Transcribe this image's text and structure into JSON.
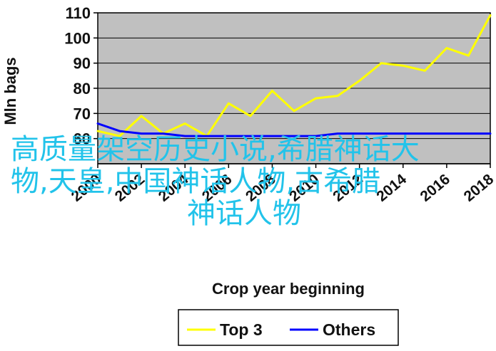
{
  "chart_data": {
    "type": "line",
    "xlabel": "Crop year beginning",
    "ylabel": "Mln bags",
    "ylim": [
      50,
      110
    ],
    "yticks": [
      60,
      70,
      80,
      90,
      100,
      110
    ],
    "xlim": [
      2000,
      2018
    ],
    "xticks": [
      2000,
      2002,
      2004,
      2006,
      2008,
      2010,
      2012,
      2014,
      2016,
      2018
    ],
    "grid": "horizontal",
    "legend": "bottom",
    "series": [
      {
        "name": "Top 3",
        "color": "#ffff00",
        "x": [
          2000,
          2001,
          2002,
          2003,
          2004,
          2005,
          2006,
          2007,
          2008,
          2009,
          2010,
          2011,
          2012,
          2013,
          2014,
          2015,
          2016,
          2017,
          2018
        ],
        "y": [
          63,
          61,
          69,
          62,
          66,
          61,
          74,
          69,
          79,
          71,
          76,
          77,
          83,
          90,
          89,
          87,
          96,
          93,
          109
        ]
      },
      {
        "name": "Others",
        "color": "#0000ff",
        "x": [
          2000,
          2001,
          2002,
          2003,
          2004,
          2005,
          2006,
          2007,
          2008,
          2009,
          2010,
          2011,
          2012,
          2013,
          2014,
          2015,
          2016,
          2017,
          2018
        ],
        "y": [
          66,
          63,
          62,
          62,
          61,
          61,
          61,
          61,
          61,
          61,
          61,
          62,
          62,
          62,
          62,
          62,
          62,
          62,
          62
        ]
      }
    ]
  },
  "overlay": {
    "line1": "高质量架空历史小说,希腊神话大",
    "line2": "物,天皇,中国神话人物,古希腊",
    "line3": "神话人物"
  }
}
